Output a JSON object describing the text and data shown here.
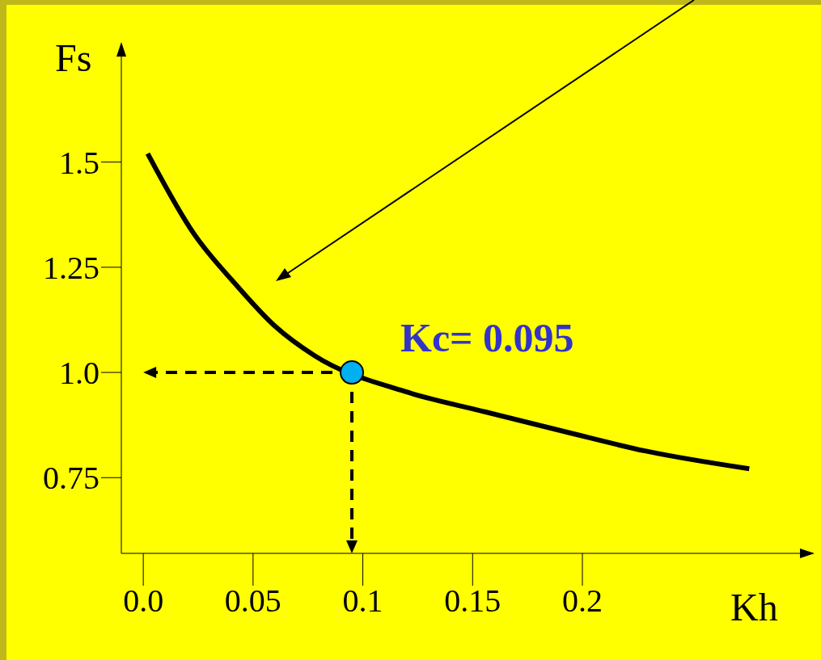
{
  "chart_data": {
    "type": "line",
    "xlabel": "Kh",
    "ylabel": "Fs",
    "xlim": [
      -0.01,
      0.305
    ],
    "ylim": [
      0.57,
      1.77
    ],
    "xticks": [
      {
        "value": 0,
        "label": "0.0"
      },
      0.05,
      0.1,
      0.15,
      0.2
    ],
    "yticks": [
      0.75,
      {
        "value": 1,
        "label": "1.0"
      },
      1.25,
      1.5
    ],
    "series": [
      {
        "color": "#000000",
        "x": [
          0.002,
          0.023,
          0.042,
          0.06,
          0.078,
          0.119,
          0.156,
          0.193,
          0.229,
          0.276
        ],
        "values": [
          1.52,
          1.33,
          1.21,
          1.11,
          1.04,
          0.955,
          0.906,
          0.858,
          0.813,
          0.771
        ]
      },
      {
        "type": "scatter",
        "color": "#00b0f0",
        "marker": "circle",
        "x": [
          0.095
        ],
        "values": [
          1.0
        ]
      }
    ],
    "ref_lines": [
      {
        "axis": "x",
        "value": 0.095,
        "line_style": "dashed",
        "color": "#000000"
      },
      {
        "axis": "y",
        "value": 1.0,
        "line_style": "dashed",
        "color": "#000000"
      }
    ],
    "annotations": [
      {
        "text": "Kc= 0.095",
        "x": 0.095,
        "y": 1.0
      }
    ],
    "grid": false,
    "legend": false,
    "marker": "none",
    "line_style": "solid"
  }
}
